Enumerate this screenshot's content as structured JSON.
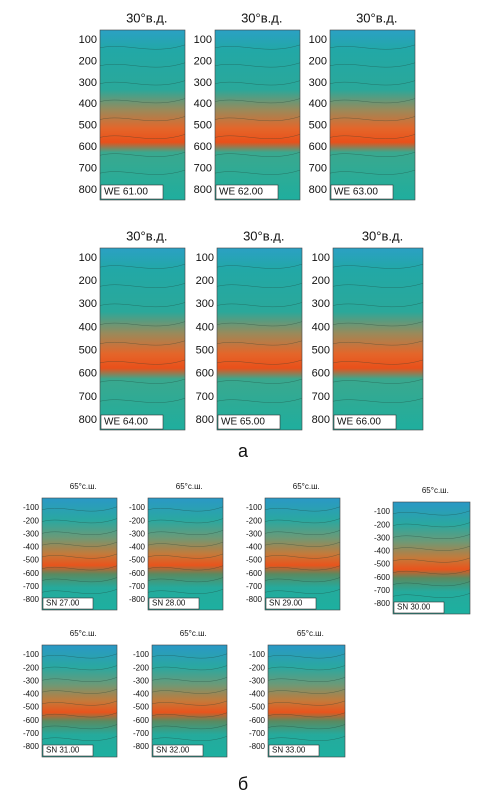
{
  "section_a": {
    "yticks": [
      "100",
      "200",
      "300",
      "400",
      "500",
      "600",
      "700",
      "800"
    ],
    "panels": [
      {
        "header": "30°в.д.",
        "label": "WE 61.00"
      },
      {
        "header": "30°в.д.",
        "label": "WE 62.00"
      },
      {
        "header": "30°в.д.",
        "label": "WE 63.00"
      },
      {
        "header": "30°в.д.",
        "label": "WE 64.00"
      },
      {
        "header": "30°в.д.",
        "label": "WE 65.00"
      },
      {
        "header": "30°в.д.",
        "label": "WE 66.00"
      }
    ],
    "caption": "а"
  },
  "section_b": {
    "yticks": [
      "-100",
      "-200",
      "-300",
      "-400",
      "-500",
      "-600",
      "-700",
      "-800"
    ],
    "panels": [
      {
        "header": "65°с.ш.",
        "label": "SN 27.00"
      },
      {
        "header": "65°с.ш.",
        "label": "SN 28.00"
      },
      {
        "header": "65°с.ш.",
        "label": "SN 29.00"
      },
      {
        "header": "65°с.ш.",
        "label": "SN 30.00"
      },
      {
        "header": "65°с.ш.",
        "label": "SN 31.00"
      },
      {
        "header": "65°с.ш.",
        "label": "SN 32.00"
      },
      {
        "header": "65°с.ш.",
        "label": "SN 33.00"
      }
    ],
    "caption": "б"
  }
}
